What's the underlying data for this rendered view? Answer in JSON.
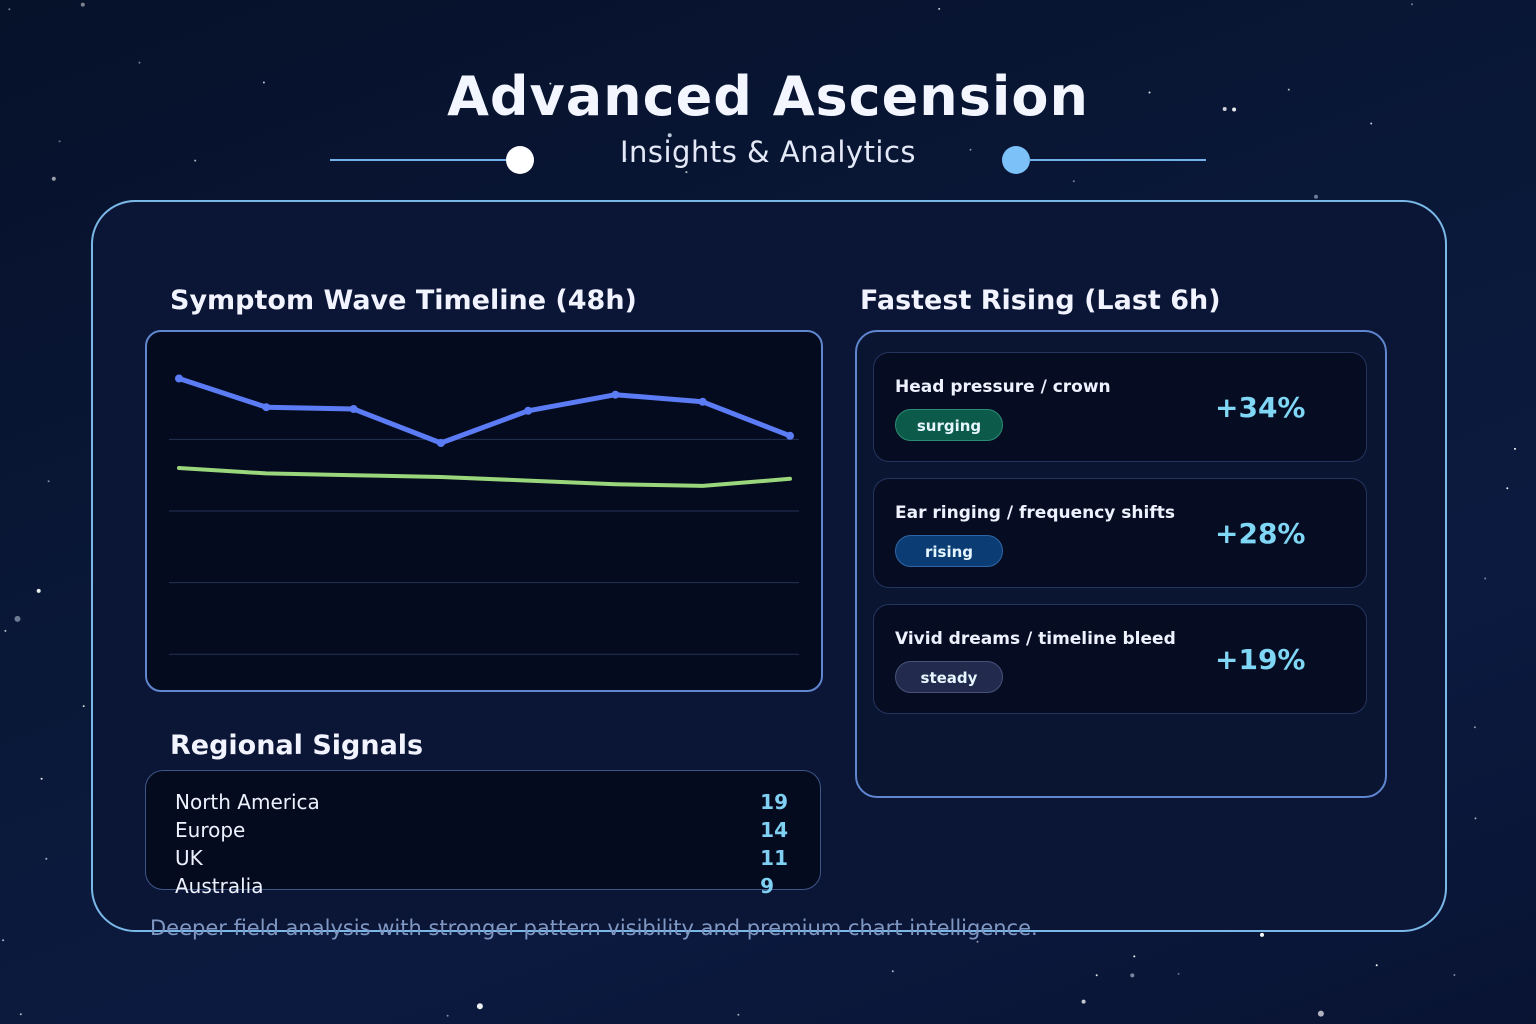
{
  "header": {
    "title": "Advanced Ascension",
    "subtitle": "Insights & Analytics"
  },
  "symptom_wave": {
    "title": "Symptom Wave Timeline (48h)"
  },
  "chart_data": {
    "type": "line",
    "title": "Symptom Wave Timeline (48h)",
    "xlabel": "",
    "ylabel": "",
    "grid": true,
    "legend": "none",
    "x": [
      0,
      6,
      12,
      18,
      24,
      30,
      36,
      42
    ],
    "ylim": [
      0,
      100
    ],
    "series": [
      {
        "color": "#5b7cf5",
        "markers": true,
        "values": [
          87,
          79,
          78.5,
          69,
          78,
          82.5,
          80.5,
          71
        ]
      },
      {
        "color": "#9ad67c",
        "markers": false,
        "values": [
          62,
          60.5,
          60,
          59.5,
          58.5,
          57.5,
          57,
          59
        ]
      }
    ]
  },
  "regional": {
    "title": "Regional Signals",
    "rows": [
      {
        "name": "North America",
        "value": "19"
      },
      {
        "name": "Europe",
        "value": "14"
      },
      {
        "name": "UK",
        "value": "11"
      },
      {
        "name": "Australia",
        "value": "9"
      }
    ]
  },
  "rising": {
    "title": "Fastest Rising (Last 6h)",
    "items": [
      {
        "label": "Head pressure / crown",
        "badge": "surging",
        "badge_color": "#0b5a4a",
        "badge_border": "#2b8c73",
        "change": "+34%"
      },
      {
        "label": "Ear ringing / frequency shifts",
        "badge": "rising",
        "badge_color": "#0b3c73",
        "badge_border": "#2e66a8",
        "change": "+28%"
      },
      {
        "label": "Vivid dreams / timeline bleed",
        "badge": "steady",
        "badge_color": "#222b4d",
        "badge_border": "#46527c",
        "change": "+19%"
      }
    ]
  },
  "footer": {
    "text": "Deeper field analysis with stronger pattern visibility and premium chart intelligence."
  },
  "colors": {
    "accent": "#7ab8e8",
    "value_text": "#7fd0f3"
  }
}
